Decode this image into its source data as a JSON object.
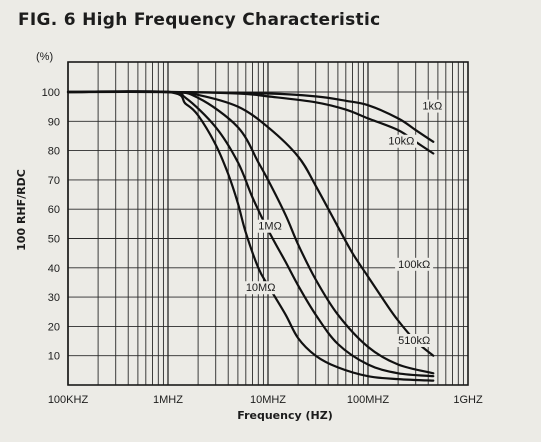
{
  "chart_data": {
    "type": "line",
    "title": "FIG. 6 High Frequency Characteristic",
    "xlabel": "Frequency (HZ)",
    "ylabel": "100 RHF/RDC",
    "y_unit_label": "(%)",
    "x_scale": "log",
    "x_range_hz": [
      100000,
      1000000000
    ],
    "ylim": [
      0,
      105
    ],
    "grid": true,
    "x_ticks": [
      {
        "hz": 100000,
        "label": "100KHZ"
      },
      {
        "hz": 1000000,
        "label": "1MHZ"
      },
      {
        "hz": 10000000,
        "label": "10MHZ"
      },
      {
        "hz": 100000000,
        "label": "100MHZ"
      },
      {
        "hz": 1000000000,
        "label": "1GHZ"
      }
    ],
    "y_ticks": [
      {
        "value": 10,
        "label": "10"
      },
      {
        "value": 20,
        "label": "20"
      },
      {
        "value": 30,
        "label": "30"
      },
      {
        "value": 40,
        "label": "40"
      },
      {
        "value": 50,
        "label": "50"
      },
      {
        "value": 60,
        "label": "60"
      },
      {
        "value": 70,
        "label": "70"
      },
      {
        "value": 80,
        "label": "80"
      },
      {
        "value": 90,
        "label": "90"
      },
      {
        "value": 100,
        "label": "100"
      }
    ],
    "series": [
      {
        "name": "1kΩ",
        "label_at": {
          "hz": 350000000,
          "value": 94
        },
        "points": [
          [
            100000,
            100
          ],
          [
            1000000,
            100
          ],
          [
            10000000,
            99.5
          ],
          [
            30000000,
            98.5
          ],
          [
            60000000,
            97
          ],
          [
            100000000,
            95.5
          ],
          [
            200000000,
            91
          ],
          [
            300000000,
            87
          ],
          [
            450000000,
            83
          ]
        ]
      },
      {
        "name": "10kΩ",
        "label_at": {
          "hz": 160000000,
          "value": 82
        },
        "points": [
          [
            100000,
            100
          ],
          [
            1000000,
            100
          ],
          [
            5000000,
            99.5
          ],
          [
            10000000,
            98.5
          ],
          [
            30000000,
            96.5
          ],
          [
            60000000,
            94
          ],
          [
            100000000,
            91
          ],
          [
            200000000,
            87
          ],
          [
            300000000,
            83
          ],
          [
            450000000,
            79
          ]
        ]
      },
      {
        "name": "100kΩ",
        "label_at": {
          "hz": 200000000,
          "value": 40
        },
        "points": [
          [
            100000,
            100
          ],
          [
            1000000,
            100
          ],
          [
            2000000,
            99
          ],
          [
            5000000,
            95
          ],
          [
            10000000,
            88
          ],
          [
            20000000,
            78
          ],
          [
            30000000,
            68
          ],
          [
            50000000,
            54
          ],
          [
            70000000,
            45
          ],
          [
            100000000,
            37
          ],
          [
            150000000,
            28
          ],
          [
            200000000,
            22
          ],
          [
            300000000,
            15
          ],
          [
            450000000,
            10
          ]
        ]
      },
      {
        "name": "510kΩ",
        "label_at": {
          "hz": 200000000,
          "value": 14
        },
        "points": [
          [
            100000,
            100
          ],
          [
            1000000,
            100
          ],
          [
            2000000,
            98
          ],
          [
            5000000,
            88
          ],
          [
            8000000,
            76
          ],
          [
            10000000,
            70
          ],
          [
            15000000,
            58
          ],
          [
            20000000,
            48
          ],
          [
            30000000,
            36
          ],
          [
            50000000,
            24
          ],
          [
            100000000,
            13
          ],
          [
            200000000,
            7
          ],
          [
            450000000,
            4
          ]
        ]
      },
      {
        "name": "1MΩ",
        "label_at": {
          "hz": 8000000,
          "value": 53
        },
        "points": [
          [
            100000,
            100
          ],
          [
            1000000,
            100
          ],
          [
            1500000,
            98
          ],
          [
            3000000,
            88
          ],
          [
            5000000,
            76
          ],
          [
            7000000,
            64
          ],
          [
            10000000,
            53
          ],
          [
            15000000,
            42
          ],
          [
            20000000,
            34
          ],
          [
            30000000,
            24
          ],
          [
            50000000,
            14
          ],
          [
            100000000,
            7
          ],
          [
            200000000,
            4
          ],
          [
            450000000,
            3
          ]
        ]
      },
      {
        "name": "10MΩ",
        "label_at": {
          "hz": 6000000,
          "value": 32
        },
        "points": [
          [
            100000,
            100
          ],
          [
            1000000,
            100
          ],
          [
            1500000,
            96
          ],
          [
            2000000,
            92
          ],
          [
            3000000,
            82
          ],
          [
            4000000,
            72
          ],
          [
            5000000,
            62
          ],
          [
            6000000,
            52
          ],
          [
            8000000,
            40
          ],
          [
            10000000,
            34
          ],
          [
            15000000,
            24
          ],
          [
            20000000,
            16
          ],
          [
            30000000,
            10
          ],
          [
            50000000,
            6
          ],
          [
            100000000,
            3
          ],
          [
            200000000,
            2
          ],
          [
            450000000,
            1.5
          ]
        ]
      }
    ]
  }
}
